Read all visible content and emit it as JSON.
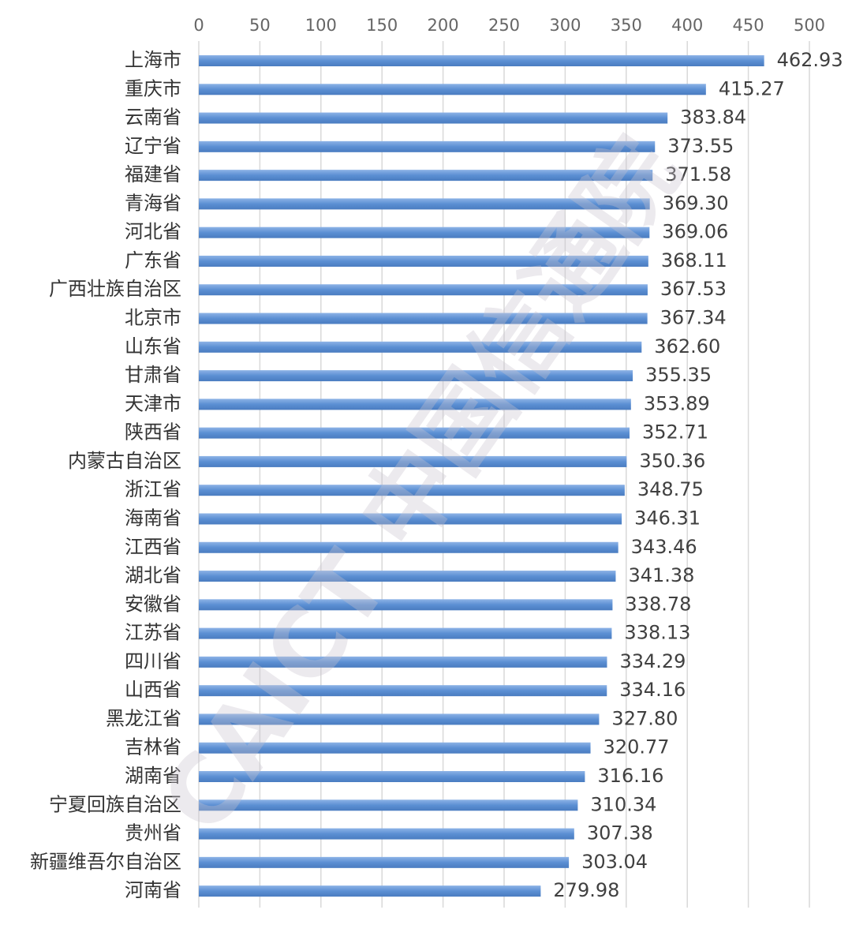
{
  "chart_data": {
    "type": "bar",
    "orientation": "horizontal",
    "categories": [
      "上海市",
      "重庆市",
      "云南省",
      "辽宁省",
      "福建省",
      "青海省",
      "河北省",
      "广东省",
      "广西壮族自治区",
      "北京市",
      "山东省",
      "甘肃省",
      "天津市",
      "陕西省",
      "内蒙古自治区",
      "浙江省",
      "海南省",
      "江西省",
      "湖北省",
      "安徽省",
      "江苏省",
      "四川省",
      "山西省",
      "黑龙江省",
      "吉林省",
      "湖南省",
      "宁夏回族自治区",
      "贵州省",
      "新疆维吾尔自治区",
      "河南省"
    ],
    "values": [
      462.93,
      415.27,
      383.84,
      373.55,
      371.58,
      369.3,
      369.06,
      368.11,
      367.53,
      367.34,
      362.6,
      355.35,
      353.89,
      352.71,
      350.36,
      348.75,
      346.31,
      343.46,
      341.38,
      338.78,
      338.13,
      334.29,
      334.16,
      327.8,
      320.77,
      316.16,
      310.34,
      307.38,
      303.04,
      279.98
    ],
    "value_labels": [
      "462.93",
      "415.27",
      "383.84",
      "373.55",
      "371.58",
      "369.30",
      "369.06",
      "368.11",
      "367.53",
      "367.34",
      "362.60",
      "355.35",
      "353.89",
      "352.71",
      "350.36",
      "348.75",
      "346.31",
      "343.46",
      "341.38",
      "338.78",
      "338.13",
      "334.29",
      "334.16",
      "327.80",
      "320.77",
      "316.16",
      "310.34",
      "307.38",
      "303.04",
      "279.98"
    ],
    "color": "#5b8fd3",
    "xlim": [
      0,
      500
    ],
    "xticks": [
      0,
      50,
      100,
      150,
      200,
      250,
      300,
      350,
      400,
      450,
      500
    ],
    "grid": true,
    "watermark": "CAICT 中国信通院"
  }
}
